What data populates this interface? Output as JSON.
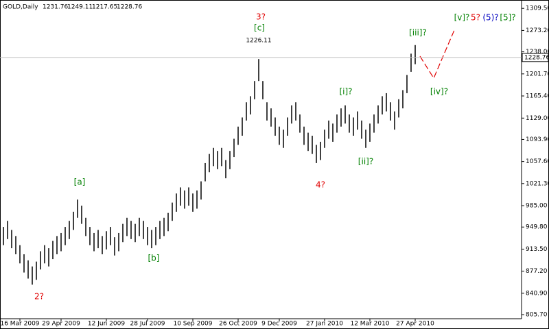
{
  "chart_data": {
    "type": "ohlc",
    "symbol": "GOLD,Daily",
    "ohlc": [
      1231.76,
      1249.11,
      1217.65,
      1228.76
    ],
    "high": [
      950,
      960,
      945,
      935,
      920,
      905,
      895,
      885,
      893,
      910,
      920,
      915,
      927,
      935,
      940,
      950,
      960,
      975,
      995,
      985,
      965,
      950,
      940,
      945,
      935,
      943,
      950,
      933,
      940,
      955,
      965,
      960,
      955,
      965,
      960,
      950,
      945,
      950,
      960,
      965,
      973,
      990,
      1005,
      1015,
      1010,
      1015,
      1005,
      1010,
      1025,
      1055,
      1070,
      1080,
      1075,
      1080,
      1060,
      1075,
      1095,
      1115,
      1130,
      1155,
      1165,
      1190,
      1226.11,
      1190,
      1155,
      1145,
      1130,
      1115,
      1110,
      1130,
      1150,
      1155,
      1135,
      1115,
      1105,
      1100,
      1085,
      1090,
      1110,
      1125,
      1120,
      1135,
      1145,
      1150,
      1135,
      1130,
      1140,
      1125,
      1110,
      1120,
      1135,
      1150,
      1165,
      1170,
      1155,
      1140,
      1160,
      1175,
      1200,
      1235,
      1249.11
    ],
    "low": [
      920,
      930,
      915,
      905,
      890,
      875,
      865,
      855,
      863,
      880,
      890,
      885,
      897,
      905,
      910,
      920,
      930,
      945,
      965,
      955,
      935,
      920,
      910,
      915,
      905,
      913,
      920,
      903,
      910,
      925,
      935,
      930,
      925,
      935,
      930,
      920,
      915,
      920,
      930,
      935,
      943,
      960,
      975,
      985,
      980,
      985,
      975,
      980,
      995,
      1025,
      1040,
      1050,
      1045,
      1050,
      1030,
      1045,
      1065,
      1085,
      1100,
      1125,
      1135,
      1160,
      1190,
      1160,
      1125,
      1115,
      1100,
      1085,
      1080,
      1100,
      1120,
      1125,
      1105,
      1085,
      1075,
      1070,
      1055,
      1060,
      1080,
      1095,
      1090,
      1105,
      1115,
      1120,
      1105,
      1100,
      1110,
      1095,
      1080,
      1090,
      1105,
      1120,
      1135,
      1140,
      1125,
      1110,
      1130,
      1145,
      1170,
      1205,
      1217.65
    ],
    "xticks": [
      {
        "value": 4,
        "label": "16 Mar 2009"
      },
      {
        "value": 14,
        "label": "29 Apr 2009"
      },
      {
        "value": 25,
        "label": "12 Jun 2009"
      },
      {
        "value": 35,
        "label": "28 Jul 2009"
      },
      {
        "value": 46,
        "label": "10 Sep 2009"
      },
      {
        "value": 57,
        "label": "26 Oct 2009"
      },
      {
        "value": 67,
        "label": "9 Dec 2009"
      },
      {
        "value": 78,
        "label": "27 Jan 2010"
      },
      {
        "value": 89,
        "label": "12 Mar 2010"
      },
      {
        "value": 100,
        "label": "27 Apr 2010"
      }
    ],
    "xlim": [
      0,
      100
    ],
    "ylim": [
      799,
      1321
    ],
    "yticks": [
      {
        "value": 805.7,
        "label": "805.70"
      },
      {
        "value": 840.9,
        "label": "840.90"
      },
      {
        "value": 877.2,
        "label": "877.20"
      },
      {
        "value": 913.5,
        "label": "913.50"
      },
      {
        "value": 949.8,
        "label": "949.80"
      },
      {
        "value": 985,
        "label": "985.00"
      },
      {
        "value": 1021.3,
        "label": "1021.30"
      },
      {
        "value": 1057.6,
        "label": "1057.60"
      },
      {
        "value": 1093.9,
        "label": "1093.90"
      },
      {
        "value": 1129,
        "label": "1129.00"
      },
      {
        "value": 1165.4,
        "label": "1165.40"
      },
      {
        "value": 1201.7,
        "label": "1201.70"
      },
      {
        "value": 1238,
        "label": "1238.00"
      },
      {
        "value": 1273.2,
        "label": "1273.20"
      },
      {
        "value": 1309.5,
        "label": "1309.50"
      }
    ],
    "color": "#000000",
    "annotations": [
      {
        "text": "3?",
        "color": "#e00000"
      },
      {
        "text": "[c]",
        "color": "#008000"
      },
      {
        "text": "[a]",
        "color": "#008000"
      },
      {
        "text": "[b]",
        "color": "#008000"
      },
      {
        "text": "2?",
        "color": "#e00000"
      },
      {
        "text": "4?",
        "color": "#e00000"
      },
      {
        "text": "[i]?",
        "color": "#008000"
      },
      {
        "text": "[ii]?",
        "color": "#008000"
      },
      {
        "text": "[iii]?",
        "color": "#008000"
      },
      {
        "text": "[iv]?",
        "color": "#008000"
      },
      {
        "text": "[v]?",
        "color": "#008000"
      },
      {
        "text": "5?",
        "color": "#e00000"
      },
      {
        "text": "(5)?",
        "color": "#0000c0"
      },
      {
        "text": "[5]?",
        "color": "#008000"
      }
    ]
  }
}
